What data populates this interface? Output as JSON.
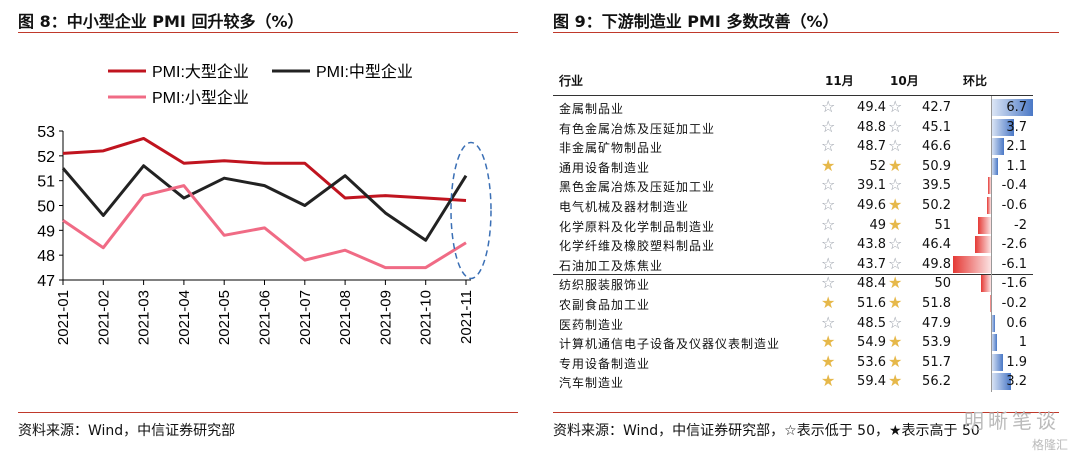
{
  "left": {
    "title": "图 8：中小型企业 PMI 回升较多（%）",
    "source": "资料来源：Wind，中信证券研究部"
  },
  "right": {
    "title": "图 9：下游制造业 PMI 多数改善（%）",
    "source": "资料来源：Wind，中信证券研究部，☆表示低于 50，★表示高于 50",
    "headers": {
      "industry": "行业",
      "nov": "11月",
      "oct": "10月",
      "mom": "环比"
    }
  },
  "watermark": "明晰笔谈",
  "watermark2": "格隆汇",
  "chart_data": [
    {
      "type": "line",
      "title": "图 8：中小型企业 PMI 回升较多（%）",
      "categories": [
        "2021-01",
        "2021-02",
        "2021-03",
        "2021-04",
        "2021-05",
        "2021-06",
        "2021-07",
        "2021-08",
        "2021-09",
        "2021-10",
        "2021-11"
      ],
      "ylim": [
        47,
        53
      ],
      "yticks": [
        47,
        48,
        49,
        50,
        51,
        52,
        53
      ],
      "legend": "top",
      "grid": false,
      "series": [
        {
          "name": "PMI:大型企业",
          "color": "#c0141f",
          "values": [
            52.1,
            52.2,
            52.7,
            51.7,
            51.8,
            51.7,
            51.7,
            50.3,
            50.4,
            50.3,
            50.2
          ]
        },
        {
          "name": "PMI:中型企业",
          "color": "#222222",
          "values": [
            51.5,
            49.6,
            51.6,
            50.3,
            51.1,
            50.8,
            50.0,
            51.2,
            49.7,
            48.6,
            51.2
          ]
        },
        {
          "name": "PMI:小型企业",
          "color": "#f06b85",
          "values": [
            49.4,
            48.3,
            50.4,
            50.8,
            48.8,
            49.1,
            47.8,
            48.2,
            47.5,
            47.5,
            48.5
          ]
        }
      ]
    },
    {
      "type": "table",
      "title": "图 9：下游制造业 PMI 多数改善（%）",
      "columns": [
        "行业",
        "11月",
        "10月",
        "环比"
      ],
      "rows": [
        {
          "name": "金属制品业",
          "nov": "49.4",
          "oct": "42.7",
          "chg": "6.7",
          "chg_val": 6.7,
          "nov_star": "☆",
          "oct_star": "☆"
        },
        {
          "name": "有色金属冶炼及压延加工业",
          "nov": "48.8",
          "oct": "45.1",
          "chg": "3.7",
          "chg_val": 3.7,
          "nov_star": "☆",
          "oct_star": "☆"
        },
        {
          "name": "非金属矿物制品业",
          "nov": "48.7",
          "oct": "46.6",
          "chg": "2.1",
          "chg_val": 2.1,
          "nov_star": "☆",
          "oct_star": "☆"
        },
        {
          "name": "通用设备制造业",
          "nov": "52",
          "oct": "50.9",
          "chg": "1.1",
          "chg_val": 1.1,
          "nov_star": "★",
          "oct_star": "★"
        },
        {
          "name": "黑色金属冶炼及压延加工业",
          "nov": "39.1",
          "oct": "39.5",
          "chg": "-0.4",
          "chg_val": -0.4,
          "nov_star": "☆",
          "oct_star": "☆"
        },
        {
          "name": "电气机械及器材制造业",
          "nov": "49.6",
          "oct": "50.2",
          "chg": "-0.6",
          "chg_val": -0.6,
          "nov_star": "☆",
          "oct_star": "★"
        },
        {
          "name": "化学原料及化学制品制造业",
          "nov": "49",
          "oct": "51",
          "chg": "-2",
          "chg_val": -2,
          "nov_star": "☆",
          "oct_star": "★"
        },
        {
          "name": "化学纤维及橡胶塑料制品业",
          "nov": "43.8",
          "oct": "46.4",
          "chg": "-2.6",
          "chg_val": -2.6,
          "nov_star": "☆",
          "oct_star": "☆"
        },
        {
          "name": "石油加工及炼焦业",
          "nov": "43.7",
          "oct": "49.8",
          "chg": "-6.1",
          "chg_val": -6.1,
          "nov_star": "☆",
          "oct_star": "☆"
        },
        {
          "name": "纺织服装服饰业",
          "nov": "48.4",
          "oct": "50",
          "chg": "-1.6",
          "chg_val": -1.6,
          "nov_star": "☆",
          "oct_star": "★"
        },
        {
          "name": "农副食品加工业",
          "nov": "51.6",
          "oct": "51.8",
          "chg": "-0.2",
          "chg_val": -0.2,
          "nov_star": "★",
          "oct_star": "★"
        },
        {
          "name": "医药制造业",
          "nov": "48.5",
          "oct": "47.9",
          "chg": "0.6",
          "chg_val": 0.6,
          "nov_star": "☆",
          "oct_star": "☆"
        },
        {
          "name": "计算机通信电子设备及仪器仪表制造业",
          "nov": "54.9",
          "oct": "53.9",
          "chg": "1",
          "chg_val": 1,
          "nov_star": "★",
          "oct_star": "★"
        },
        {
          "name": "专用设备制造业",
          "nov": "53.6",
          "oct": "51.7",
          "chg": "1.9",
          "chg_val": 1.9,
          "nov_star": "★",
          "oct_star": "★"
        },
        {
          "name": "汽车制造业",
          "nov": "59.4",
          "oct": "56.2",
          "chg": "3.2",
          "chg_val": 3.2,
          "nov_star": "★",
          "oct_star": "★"
        }
      ]
    }
  ]
}
